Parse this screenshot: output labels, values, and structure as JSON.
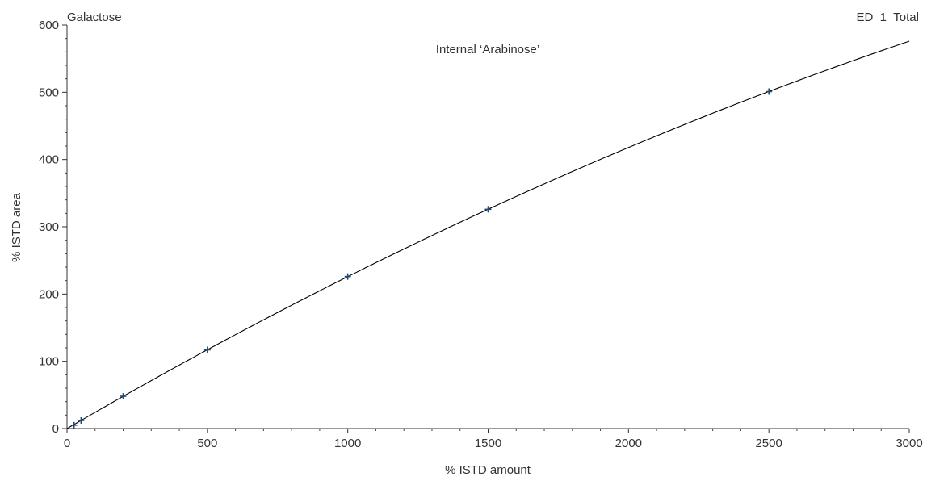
{
  "header": {
    "compound": "Galactose",
    "channel": "ED_1_Total"
  },
  "chart_data": {
    "type": "scatter",
    "title": "Internal ‘Arabinose’",
    "xlabel": "% ISTD amount",
    "ylabel": "% ISTD area",
    "xlim": [
      0,
      3000
    ],
    "ylim": [
      0,
      600
    ],
    "x_ticks": [
      0,
      500,
      1000,
      1500,
      2000,
      2500,
      3000
    ],
    "y_ticks": [
      0,
      100,
      200,
      300,
      400,
      500,
      600
    ],
    "x_minor_step": 100,
    "y_minor_step": 20,
    "grid": false,
    "series": [
      {
        "points": [
          {
            "x": 25,
            "y": 5
          },
          {
            "x": 50,
            "y": 12
          },
          {
            "x": 200,
            "y": 48
          },
          {
            "x": 500,
            "y": 117
          },
          {
            "x": 1000,
            "y": 226
          },
          {
            "x": 1500,
            "y": 326
          },
          {
            "x": 2500,
            "y": 501
          }
        ],
        "marker": "plus",
        "color": "#1f4e79"
      }
    ],
    "fit_curve": {
      "type": "quadratic",
      "points": [
        {
          "x": 0,
          "y": 0
        },
        {
          "x": 500,
          "y": 117
        },
        {
          "x": 1000,
          "y": 226
        },
        {
          "x": 1500,
          "y": 326
        },
        {
          "x": 2000,
          "y": 418
        },
        {
          "x": 2500,
          "y": 501
        },
        {
          "x": 3000,
          "y": 576
        }
      ],
      "color": "#000000"
    }
  }
}
